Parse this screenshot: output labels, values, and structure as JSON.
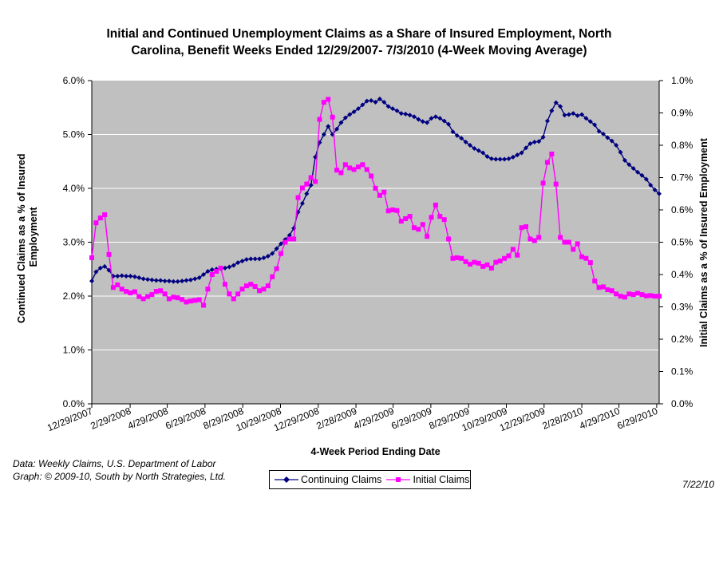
{
  "title": {
    "line1": "Initial and Continued Unemployment Claims as a Share of Insured Employment, North",
    "line2": "Carolina, Benefit Weeks Ended 12/29/2007- 7/3/2010 (4-Week Moving Average)"
  },
  "source": {
    "line1": "Data:  Weekly Claims, U.S. Department of Labor",
    "line2": "Graph: © 2009-10, South by North Strategies, Ltd."
  },
  "date_stamp": "7/22/10",
  "colors": {
    "continuing": "#000080",
    "initial": "#ff00ff",
    "plot_background": "#c0c0c0",
    "gridline": "#ffffff"
  },
  "chart_data": {
    "type": "line",
    "title": "Initial and Continued Unemployment Claims as a Share of Insured Employment, North Carolina, Benefit Weeks Ended 12/29/2007- 7/3/2010 (4-Week Moving Average)",
    "xlabel": "4-Week Period Ending Date",
    "ylabel_left": "Continued Claims as a % of Insured Employment",
    "ylabel_right": "Initial Claims as a % of Insured Employment",
    "y_left_range": [
      0,
      6
    ],
    "y_right_range": [
      0,
      1
    ],
    "y_left_ticks": [
      "0.0%",
      "1.0%",
      "2.0%",
      "3.0%",
      "4.0%",
      "5.0%",
      "6.0%"
    ],
    "y_right_ticks": [
      "0.0%",
      "0.1%",
      "0.2%",
      "0.3%",
      "0.4%",
      "0.5%",
      "0.6%",
      "0.7%",
      "0.8%",
      "0.9%",
      "1.0%"
    ],
    "x_ticks": [
      "12/29/2007",
      "2/29/2008",
      "4/29/2008",
      "6/29/2008",
      "8/29/2008",
      "10/29/2008",
      "12/29/2008",
      "2/28/2009",
      "4/29/2009",
      "6/29/2009",
      "8/29/2009",
      "10/29/2009",
      "12/29/2009",
      "2/28/2010",
      "4/29/2010",
      "6/29/2010"
    ],
    "x_start": "12/29/2007",
    "x_end": "7/3/2010",
    "grid": true,
    "legend_position": "bottom",
    "series": [
      {
        "name": "Continuing Claims",
        "axis": "left",
        "color": "#000080",
        "marker": "diamond",
        "values": [
          2.28,
          2.45,
          2.52,
          2.55,
          2.48,
          2.37,
          2.37,
          2.38,
          2.37,
          2.37,
          2.36,
          2.34,
          2.32,
          2.31,
          2.3,
          2.29,
          2.29,
          2.28,
          2.28,
          2.27,
          2.27,
          2.28,
          2.29,
          2.3,
          2.32,
          2.34,
          2.4,
          2.46,
          2.49,
          2.5,
          2.51,
          2.52,
          2.54,
          2.57,
          2.62,
          2.65,
          2.68,
          2.69,
          2.69,
          2.69,
          2.71,
          2.74,
          2.79,
          2.88,
          2.97,
          3.05,
          3.13,
          3.26,
          3.56,
          3.72,
          3.9,
          4.06,
          4.58,
          4.85,
          5.0,
          5.15,
          5.0,
          5.1,
          5.22,
          5.31,
          5.37,
          5.42,
          5.48,
          5.55,
          5.62,
          5.63,
          5.6,
          5.66,
          5.6,
          5.52,
          5.48,
          5.44,
          5.39,
          5.38,
          5.36,
          5.33,
          5.28,
          5.24,
          5.22,
          5.3,
          5.33,
          5.3,
          5.25,
          5.19,
          5.05,
          4.98,
          4.93,
          4.86,
          4.8,
          4.74,
          4.7,
          4.66,
          4.59,
          4.55,
          4.54,
          4.54,
          4.54,
          4.55,
          4.58,
          4.62,
          4.66,
          4.75,
          4.83,
          4.86,
          4.87,
          4.95,
          5.25,
          5.44,
          5.59,
          5.52,
          5.36,
          5.37,
          5.39,
          5.35,
          5.37,
          5.3,
          5.24,
          5.18,
          5.06,
          5.01,
          4.94,
          4.88,
          4.8,
          4.67,
          4.52,
          4.44,
          4.37,
          4.3,
          4.24,
          4.17,
          4.06,
          3.97,
          3.9
        ]
      },
      {
        "name": "Initial Claims",
        "axis": "right",
        "color": "#ff00ff",
        "marker": "square",
        "values": [
          0.452,
          0.56,
          0.575,
          0.585,
          0.462,
          0.36,
          0.368,
          0.355,
          0.348,
          0.343,
          0.347,
          0.332,
          0.325,
          0.332,
          0.338,
          0.348,
          0.35,
          0.34,
          0.325,
          0.33,
          0.328,
          0.323,
          0.315,
          0.318,
          0.32,
          0.322,
          0.305,
          0.355,
          0.4,
          0.41,
          0.42,
          0.37,
          0.34,
          0.325,
          0.34,
          0.355,
          0.365,
          0.37,
          0.363,
          0.35,
          0.355,
          0.365,
          0.393,
          0.418,
          0.465,
          0.5,
          0.51,
          0.51,
          0.638,
          0.668,
          0.68,
          0.7,
          0.688,
          0.88,
          0.933,
          0.942,
          0.887,
          0.723,
          0.715,
          0.74,
          0.73,
          0.725,
          0.733,
          0.74,
          0.725,
          0.705,
          0.667,
          0.645,
          0.655,
          0.597,
          0.6,
          0.598,
          0.565,
          0.573,
          0.58,
          0.545,
          0.54,
          0.555,
          0.518,
          0.577,
          0.615,
          0.58,
          0.57,
          0.51,
          0.45,
          0.452,
          0.45,
          0.44,
          0.432,
          0.438,
          0.435,
          0.425,
          0.43,
          0.42,
          0.438,
          0.442,
          0.45,
          0.458,
          0.478,
          0.46,
          0.545,
          0.548,
          0.51,
          0.505,
          0.515,
          0.683,
          0.747,
          0.773,
          0.68,
          0.515,
          0.5,
          0.5,
          0.478,
          0.495,
          0.455,
          0.45,
          0.437,
          0.38,
          0.36,
          0.362,
          0.353,
          0.35,
          0.34,
          0.333,
          0.33,
          0.34,
          0.338,
          0.342,
          0.338,
          0.334,
          0.335,
          0.333,
          0.333
        ]
      }
    ]
  }
}
